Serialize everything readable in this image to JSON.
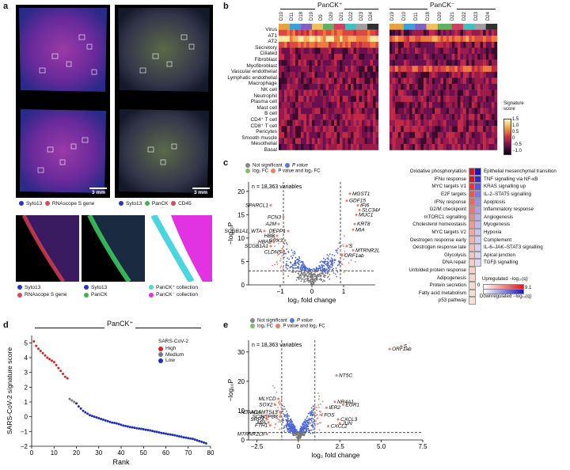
{
  "panel_a": {
    "label": "a",
    "legend_row1": [
      {
        "color": "#2a34c8",
        "text": "Syto13"
      },
      {
        "color": "#e0455a",
        "text": "RNAscope S gene"
      }
    ],
    "legend_row1b": [
      {
        "color": "#2a34c8",
        "text": "Syto13"
      },
      {
        "color": "#3cb44b",
        "text": "PanCK"
      },
      {
        "color": "#e0455a",
        "text": "CD45"
      }
    ],
    "scale_left": "3 mm",
    "scale_right": "3 mm",
    "legend_row2a": [
      {
        "color": "#2a34c8",
        "text": "Syto13"
      },
      {
        "color": "#e0455a",
        "text": "RNAscope S gene"
      }
    ],
    "legend_row2b": [
      {
        "color": "#2a34c8",
        "text": "Syto13"
      },
      {
        "color": "#3cb44b",
        "text": "PanCK"
      }
    ],
    "legend_row2c": [
      {
        "color": "#49d6e0",
        "text": "PanCK⁺ collection"
      },
      {
        "color": "#e233e2",
        "text": "PanCK⁻ collection"
      }
    ]
  },
  "panel_b": {
    "label": "b",
    "group_left": "PanCK⁺",
    "group_right": "PanCK⁻",
    "samples_left": [
      "D10",
      "D11",
      "D18",
      "D19",
      "D9",
      "D20",
      "D21",
      "D22",
      "D23",
      "D24"
    ],
    "samples_right": [
      "D19",
      "D10",
      "D11",
      "D18",
      "D20",
      "D21",
      "D22",
      "D23",
      "D24"
    ],
    "rows": [
      "Virus",
      "AT1",
      "AT2",
      "Secretory",
      "Ciliated",
      "Fibroblast",
      "Myofibroblast",
      "Vascular endothelial",
      "Lymphatic endothelial",
      "Macrophage",
      "NK cell",
      "Neutrophil",
      "Plasma cell",
      "Mast cell",
      "B cell",
      "CD4⁺ T cell",
      "CD8⁺ T cell",
      "Pericytes",
      "Smooth muscle",
      "Mesothelial",
      "Basal"
    ],
    "colorbar_title": "Signature score",
    "colorbar_ticks": [
      "1.5",
      "1.0",
      "0.5",
      "0",
      "−0.5",
      "−1.0"
    ]
  },
  "panel_c": {
    "label": "c",
    "legend": {
      "ns": "Not significant",
      "p": "P value",
      "fc": "log₂ FC",
      "pfc": "P value and log₂ FC"
    },
    "n_text": "n = 18,363 variables",
    "ylabel": "−log₁₀P",
    "xlabel": "log₂ fold change",
    "xticks": [
      "−1",
      "0",
      "1"
    ],
    "yticks": [
      "0",
      "5",
      "10",
      "15",
      "20"
    ],
    "genes_left": [
      "SPARCL1",
      "FCN3",
      "A2M",
      "SCGB1A1_WTA",
      "DEPP1",
      "HBB",
      "HBA2",
      "GPX3",
      "SCGB1A1",
      "CLDN5"
    ],
    "genes_right": [
      "MGST1",
      "GDF15",
      "IFI6",
      "SLC34A2",
      "MUC1",
      "KRT8",
      "MIA",
      "S",
      "MTRNR2L8",
      "ORF1ab"
    ],
    "pathways": [
      "Oxidative phosphorylation",
      "IFNα response",
      "MYC targets V1",
      "E2F targets",
      "IFNγ response",
      "G2/M checkpoint",
      "mTORC1 signalling",
      "Cholesterol homeostasis",
      "MYC targets V2",
      "Oestrogen response early",
      "Oestrogen response late",
      "Glycolysis",
      "DNA repair",
      "Unfolded protein response",
      "Adipogenesis",
      "Protein secretion",
      "Fatty acid metabolism",
      "p53 pathway"
    ],
    "pathway_colors": [
      "#d7191c",
      "#d7191c",
      "#e23b33",
      "#e55a4f",
      "#e86a5d",
      "#ea7a6e",
      "#ec8a7e",
      "#ef9a8e",
      "#f0a89d",
      "#f2b3a9",
      "#f3bdb3",
      "#f4c4bb",
      "#f5cac2",
      "#f6d0c9",
      "#f7d5ce",
      "#f7d8d2",
      "#f8dcd6",
      "#f8dfd9"
    ],
    "pathways_down": [
      "Epithelial mesenchymal transition",
      "TNF signalling via NF-κB",
      "KRAS signalling up",
      "IL-2–STAT5 signalling",
      "Apoptosis",
      "Inflammatory response",
      "Angiogenesis",
      "Myogenesis",
      "Hypoxia",
      "Complement",
      "IL-6–JAK–STAT3 signalling",
      "Apical junction",
      "TGFβ signalling"
    ],
    "pathway_down_colors": [
      "#1a1ab0",
      "#2f2fc4",
      "#5a5ad0",
      "#7d7dd9",
      "#9696de",
      "#a6a6e2",
      "#b3b3e6",
      "#bdbde9",
      "#c5c5ec",
      "#ccccee",
      "#d2d2f0",
      "#d6d6f1",
      "#dadaf2"
    ],
    "scale_up_label": "Upregulated −log₁₀(q)",
    "scale_down_label": "Downregulated −log₁₀(q)",
    "scale_min": "0",
    "scale_max": "9.1"
  },
  "panel_d": {
    "label": "d",
    "title": "PanCK⁺",
    "legend_title": "SARS-CoV-2",
    "legend_items": [
      {
        "color": "#e02020",
        "text": "High"
      },
      {
        "color": "#777777",
        "text": "Medium"
      },
      {
        "color": "#1f2fb8",
        "text": "Low"
      }
    ],
    "ylabel": "SARS-CoV-2 signature score",
    "xlabel": "Rank",
    "xticks": [
      "0",
      "10",
      "20",
      "30",
      "40",
      "50",
      "60",
      "70",
      "80"
    ],
    "yticks": [
      "−2",
      "−1",
      "0",
      "1",
      "2",
      "3",
      "4",
      "5"
    ]
  },
  "panel_e": {
    "label": "e",
    "legend": {
      "ns": "Not significant",
      "p": "P value",
      "fc": "log₂ FC",
      "pfc": "P value and log₂ FC"
    },
    "n_text": "n = 18,363 variables",
    "ylabel": "−log₁₀P",
    "xlabel": "log₂ fold change",
    "xticks": [
      "−2.5",
      "0",
      "2.5",
      "5.0",
      "7.5"
    ],
    "yticks": [
      "0",
      "10",
      "20",
      "30"
    ],
    "genes": [
      "ORF1ab",
      "S",
      "NT5C",
      "NR4A1",
      "EGR1",
      "IER2",
      "FOS",
      "CXCL3",
      "JUN",
      "CXCL2",
      "MLYCD",
      "SOX2",
      "ADAMTS13",
      "ADAM15",
      "HSPB8",
      "SCIN",
      "SRPX",
      "MIA",
      "FTH1",
      "MTRNR2L8"
    ]
  },
  "chart_data": [
    {
      "type": "scatter",
      "id": "d",
      "title": "PanCK⁺",
      "xlabel": "Rank",
      "ylabel": "SARS-CoV-2 signature score",
      "xlim": [
        0,
        80
      ],
      "ylim": [
        -2,
        5.5
      ],
      "series": [
        {
          "name": "High",
          "x": [
            1,
            2,
            3,
            4,
            5,
            6,
            7,
            8,
            9,
            10,
            11,
            12,
            13,
            14,
            15,
            16
          ],
          "y": [
            5.1,
            4.8,
            4.6,
            4.45,
            4.3,
            4.15,
            4.0,
            3.9,
            3.8,
            3.7,
            3.5,
            3.3,
            3.1,
            2.9,
            2.7,
            2.6
          ]
        },
        {
          "name": "Medium",
          "x": [
            17,
            18,
            19
          ],
          "y": [
            1.2,
            1.1,
            1.0
          ]
        },
        {
          "name": "Low",
          "x": [
            20,
            21,
            22,
            23,
            24,
            25,
            26,
            27,
            28,
            29,
            30,
            31,
            32,
            33,
            34,
            35,
            36,
            37,
            38,
            39,
            40,
            41,
            42,
            43,
            44,
            45,
            46,
            47,
            48,
            49,
            50,
            51,
            52,
            53,
            54,
            55,
            56,
            57,
            58,
            59,
            60,
            61,
            62,
            63,
            64,
            65,
            66,
            67,
            68,
            69,
            70,
            71,
            72,
            73,
            74,
            75,
            76,
            77,
            78
          ],
          "y": [
            0.9,
            0.7,
            0.55,
            0.4,
            0.3,
            0.2,
            0.1,
            0.05,
            0.0,
            -0.05,
            -0.1,
            -0.15,
            -0.2,
            -0.25,
            -0.3,
            -0.35,
            -0.4,
            -0.42,
            -0.45,
            -0.5,
            -0.55,
            -0.6,
            -0.63,
            -0.66,
            -0.7,
            -0.72,
            -0.75,
            -0.78,
            -0.8,
            -0.82,
            -0.85,
            -0.88,
            -0.9,
            -0.93,
            -0.96,
            -1.0,
            -1.03,
            -1.06,
            -1.1,
            -1.12,
            -1.15,
            -1.18,
            -1.2,
            -1.23,
            -1.26,
            -1.3,
            -1.33,
            -1.36,
            -1.4,
            -1.42,
            -1.45,
            -1.48,
            -1.5,
            -1.55,
            -1.6,
            -1.65,
            -1.7,
            -1.75,
            -1.8
          ]
        }
      ]
    },
    {
      "type": "scatter",
      "id": "c",
      "xlabel": "log₂ fold change",
      "ylabel": "−log₁₀P",
      "xlim": [
        -2,
        2
      ],
      "ylim": [
        0,
        22
      ],
      "labeled_points": [
        {
          "name": "SPARCL1",
          "x": -1.3,
          "y": 17
        },
        {
          "name": "FCN3",
          "x": -0.9,
          "y": 14.5
        },
        {
          "name": "A2M",
          "x": -1.05,
          "y": 13
        },
        {
          "name": "DEPP1",
          "x": -0.75,
          "y": 11.5
        },
        {
          "name": "SCGB1A1_WTA",
          "x": -1.5,
          "y": 11.5
        },
        {
          "name": "HBB",
          "x": -1.1,
          "y": 10.5
        },
        {
          "name": "GPX3",
          "x": -0.85,
          "y": 9.5
        },
        {
          "name": "HBA2",
          "x": -1.2,
          "y": 9.2
        },
        {
          "name": "SCGB1A1",
          "x": -1.3,
          "y": 8.3
        },
        {
          "name": "CLDN5",
          "x": -0.9,
          "y": 7
        },
        {
          "name": "MGST1",
          "x": 1.2,
          "y": 19.5
        },
        {
          "name": "GDF15",
          "x": 1.1,
          "y": 18
        },
        {
          "name": "IFI6",
          "x": 1.45,
          "y": 17
        },
        {
          "name": "SLC34A2",
          "x": 1.5,
          "y": 16
        },
        {
          "name": "MUC1",
          "x": 1.4,
          "y": 15
        },
        {
          "name": "KRT8",
          "x": 1.35,
          "y": 13
        },
        {
          "name": "MIA",
          "x": 1.3,
          "y": 11.8
        },
        {
          "name": "S",
          "x": 1.1,
          "y": 8.3
        },
        {
          "name": "MTRNR2L8",
          "x": 1.3,
          "y": 7.4
        },
        {
          "name": "ORF1ab",
          "x": 0.95,
          "y": 6.3
        }
      ]
    },
    {
      "type": "scatter",
      "id": "e",
      "xlabel": "log₂ fold change",
      "ylabel": "−log₁₀P",
      "xlim": [
        -3,
        7.5
      ],
      "ylim": [
        0,
        34
      ],
      "labeled_points": [
        {
          "name": "ORF1ab",
          "x": 5.5,
          "y": 31
        },
        {
          "name": "S",
          "x": 6.2,
          "y": 32
        },
        {
          "name": "NT5C",
          "x": 2.3,
          "y": 22
        },
        {
          "name": "NR4A1",
          "x": 2.2,
          "y": 13
        },
        {
          "name": "EGR1",
          "x": 2.7,
          "y": 12
        },
        {
          "name": "IER2",
          "x": 1.7,
          "y": 11
        },
        {
          "name": "FOS",
          "x": 1.4,
          "y": 8.5
        },
        {
          "name": "CXCL3",
          "x": 2.4,
          "y": 7
        },
        {
          "name": "JUN",
          "x": 2.5,
          "y": 5.7
        },
        {
          "name": "CXCL2",
          "x": 1.8,
          "y": 4.7
        },
        {
          "name": "MLYCD",
          "x": -1.2,
          "y": 14
        },
        {
          "name": "SOX2",
          "x": -1.4,
          "y": 12
        },
        {
          "name": "ADAMTS13",
          "x": -1.1,
          "y": 9.5
        },
        {
          "name": "ADAM15",
          "x": -2.1,
          "y": 9.5
        },
        {
          "name": "HSPB8",
          "x": -1.1,
          "y": 8
        },
        {
          "name": "SCIN",
          "x": -1.9,
          "y": 8
        },
        {
          "name": "SRPX",
          "x": -1.9,
          "y": 7
        },
        {
          "name": "MIA",
          "x": -1.8,
          "y": 6
        },
        {
          "name": "FTH1",
          "x": -1.7,
          "y": 5
        },
        {
          "name": "MTRNR2L8",
          "x": -1.9,
          "y": 2
        }
      ]
    }
  ]
}
